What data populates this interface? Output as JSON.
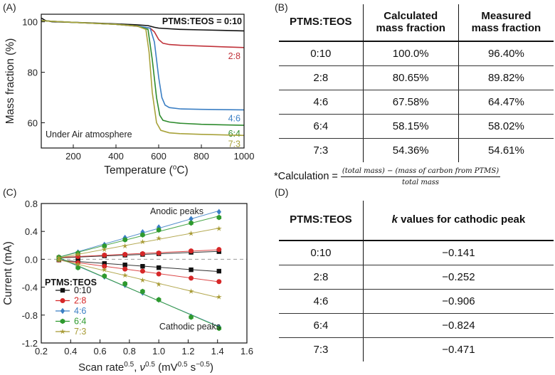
{
  "panel_a": {
    "letter": "(A)",
    "chart_data": {
      "type": "line",
      "title": "",
      "xlabel": "Temperature (",
      "xlabel_unit_sup": "o",
      "xlabel_unit_tail": "C)",
      "ylabel": "Mass fraction (%)",
      "xlim": [
        50,
        1000
      ],
      "ylim": [
        50,
        103
      ],
      "xticks": [
        200,
        400,
        600,
        800,
        1000
      ],
      "yticks": [
        60,
        80,
        100
      ],
      "legend_title": "PTMS:TEOS = 0:10",
      "annotation": "Under Air atmosphere",
      "series": [
        {
          "name": "0:10",
          "label": "0:10",
          "color": "#111111",
          "x": [
            50,
            70,
            100,
            200,
            300,
            400,
            500,
            550,
            580,
            600,
            700,
            800,
            900,
            1000
          ],
          "y": [
            101.5,
            100.5,
            100,
            99.8,
            99.5,
            99.2,
            98.8,
            98.5,
            97.8,
            97.5,
            97.0,
            96.8,
            96.6,
            96.4
          ]
        },
        {
          "name": "2:8",
          "label": "2:8",
          "color": "#c0323a",
          "x": [
            50,
            100,
            200,
            300,
            400,
            500,
            560,
            580,
            600,
            620,
            650,
            700,
            800,
            900,
            1000
          ],
          "y": [
            100.5,
            100.2,
            99.8,
            99.4,
            99,
            98.2,
            97.5,
            96,
            93,
            91.5,
            91,
            90.7,
            90.4,
            90.1,
            89.8
          ]
        },
        {
          "name": "4:6",
          "label": "4:6",
          "color": "#3b7fc4",
          "x": [
            50,
            100,
            200,
            300,
            400,
            500,
            560,
            580,
            600,
            615,
            630,
            650,
            700,
            800,
            900,
            1000
          ],
          "y": [
            100.5,
            100.2,
            99.8,
            99.4,
            99,
            98.3,
            97.5,
            92,
            78,
            70,
            67,
            66,
            65.5,
            65.3,
            65.2,
            65.1
          ]
        },
        {
          "name": "6:4",
          "label": "6:4",
          "color": "#2e8b2e",
          "x": [
            50,
            100,
            200,
            300,
            400,
            500,
            550,
            570,
            590,
            605,
            620,
            650,
            700,
            800,
            900,
            1000
          ],
          "y": [
            100.5,
            100.2,
            99.8,
            99.4,
            99,
            98.3,
            97,
            85,
            70,
            63,
            61,
            60.3,
            59.8,
            59.4,
            59.2,
            59
          ]
        },
        {
          "name": "7:3",
          "label": "7:3",
          "color": "#a8a23a",
          "x": [
            50,
            100,
            200,
            300,
            400,
            500,
            540,
            555,
            570,
            590,
            610,
            650,
            700,
            800,
            900,
            1000
          ],
          "y": [
            100.5,
            100.2,
            99.8,
            99.4,
            99,
            98.3,
            97,
            88,
            72,
            60,
            57,
            56,
            55.7,
            55.4,
            55.2,
            55
          ]
        }
      ]
    }
  },
  "panel_b": {
    "letter": "(B)",
    "headers": [
      "PTMS:TEOS",
      "Calculated mass fraction",
      "Measured mass fraction"
    ],
    "header_lines": [
      [
        "PTMS:TEOS"
      ],
      [
        "Calculated",
        "mass fraction"
      ],
      [
        "Measured",
        "mass fraction"
      ]
    ],
    "rows": [
      [
        "0:10",
        "100.0%",
        "96.40%"
      ],
      [
        "2:8",
        "80.65%",
        "89.82%"
      ],
      [
        "4:6",
        "67.58%",
        "64.47%"
      ],
      [
        "6:4",
        "58.15%",
        "58.02%"
      ],
      [
        "7:3",
        "54.36%",
        "54.61%"
      ]
    ],
    "footnote": {
      "prefix": "*Calculation = ",
      "numerator": "(total mass) − (mass of carbon from PTMS)",
      "denominator": "total mass"
    }
  },
  "panel_c": {
    "letter": "(C)",
    "chart_data": {
      "type": "scatter",
      "xlabel": "Scan rate",
      "xlabel_sup1": "0.5",
      "xlabel_mid": ", ",
      "xlabel_nu": "ν",
      "xlabel_sup2": "0.5",
      "xlabel_unit_open": " (mV",
      "xlabel_sup3": "0.5",
      "xlabel_unit_mid": " s",
      "xlabel_sup4": "−0.5",
      "xlabel_unit_close": ")",
      "ylabel": "Current (mA)",
      "xlim": [
        0.2,
        1.6
      ],
      "ylim": [
        -1.2,
        0.8
      ],
      "xticks": [
        0.2,
        0.4,
        0.6,
        0.8,
        1.0,
        1.2,
        1.4,
        1.6
      ],
      "yticks": [
        -1.2,
        -0.8,
        -0.4,
        0.0,
        0.4,
        0.8
      ],
      "zero_line": true,
      "legend_title": "PTMS:TEOS",
      "annotations": [
        "Anodic peaks",
        "Cathodic peaks"
      ],
      "x": [
        0.32,
        0.45,
        0.63,
        0.77,
        0.89,
        1.0,
        1.22,
        1.41
      ],
      "series": [
        {
          "name": "0:10",
          "color": "#111111",
          "marker": "square",
          "anodic": [
            0.02,
            0.03,
            0.05,
            0.06,
            0.07,
            0.08,
            0.1,
            0.11
          ],
          "cathodic": [
            -0.01,
            -0.03,
            -0.06,
            -0.08,
            -0.1,
            -0.12,
            -0.15,
            -0.17
          ]
        },
        {
          "name": "2:8",
          "color": "#d62728",
          "marker": "circle",
          "anodic": [
            0.03,
            0.04,
            0.06,
            0.07,
            0.08,
            0.09,
            0.12,
            0.14
          ],
          "cathodic": [
            -0.01,
            -0.05,
            -0.1,
            -0.14,
            -0.17,
            -0.21,
            -0.27,
            -0.32
          ]
        },
        {
          "name": "4:6",
          "color": "#3b7fc4",
          "marker": "diamond",
          "anodic": [
            0.03,
            0.1,
            0.21,
            0.31,
            0.39,
            0.46,
            0.58,
            0.68
          ],
          "cathodic": [
            0.0,
            -0.11,
            -0.25,
            -0.37,
            -0.48,
            -0.58,
            -0.82,
            -0.97
          ]
        },
        {
          "name": "6:4",
          "color": "#2e9a2e",
          "marker": "hexagon",
          "anodic": [
            0.03,
            0.09,
            0.19,
            0.28,
            0.35,
            0.42,
            0.52,
            0.6
          ],
          "cathodic": [
            0.0,
            -0.12,
            -0.24,
            -0.35,
            -0.46,
            -0.58,
            -0.83,
            -0.99
          ]
        },
        {
          "name": "7:3",
          "color": "#a89b35",
          "marker": "star",
          "anodic": [
            0.02,
            0.07,
            0.14,
            0.19,
            0.25,
            0.3,
            0.37,
            0.44
          ],
          "cathodic": [
            -0.01,
            -0.07,
            -0.15,
            -0.23,
            -0.3,
            -0.36,
            -0.46,
            -0.54
          ]
        }
      ]
    }
  },
  "panel_d": {
    "letter": "(D)",
    "headers": [
      "PTMS:TEOS",
      "k values for cathodic peak"
    ],
    "header_k": "k",
    "header_tail": " values for cathodic peak",
    "rows": [
      [
        "0:10",
        "−0.141"
      ],
      [
        "2:8",
        "−0.252"
      ],
      [
        "4:6",
        "−0.906"
      ],
      [
        "6:4",
        "−0.824"
      ],
      [
        "7:3",
        "−0.471"
      ]
    ]
  }
}
